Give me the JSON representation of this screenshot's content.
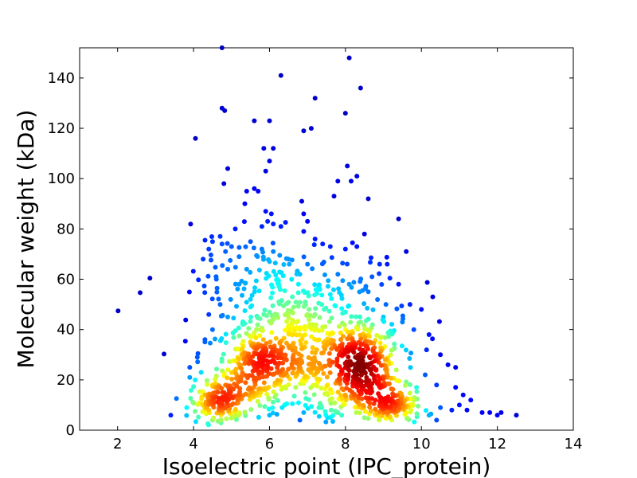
{
  "chart_data": {
    "type": "scatter",
    "title": "",
    "xlabel": "Isoelectric point (IPC_protein)",
    "ylabel": "Molecular weight (kDa)",
    "xlim": [
      1,
      14
    ],
    "ylim": [
      0,
      152
    ],
    "xticks": [
      2,
      4,
      6,
      8,
      10,
      12,
      14
    ],
    "yticks": [
      0,
      20,
      40,
      60,
      80,
      100,
      120,
      140
    ],
    "grid": false,
    "legend": "none",
    "colormap": "jet (point density: blue low → dark red high)",
    "clusters": [
      {
        "center": [
          5.7,
          25
        ],
        "note": "acidic high-density cluster"
      },
      {
        "center": [
          8.4,
          24
        ],
        "note": "basic high-density cluster"
      }
    ],
    "points": [
      [
        4.75,
        152
      ],
      [
        8.1,
        148
      ],
      [
        6.3,
        141
      ],
      [
        8.4,
        136
      ],
      [
        7.2,
        132
      ],
      [
        4.75,
        128
      ],
      [
        4.82,
        127
      ],
      [
        8.0,
        126
      ],
      [
        5.6,
        123
      ],
      [
        6.0,
        123
      ],
      [
        7.1,
        120
      ],
      [
        6.9,
        119
      ],
      [
        4.05,
        116
      ],
      [
        5.85,
        112
      ],
      [
        6.1,
        112
      ],
      [
        6.0,
        107
      ],
      [
        8.05,
        105
      ],
      [
        4.9,
        104
      ],
      [
        5.9,
        103
      ],
      [
        8.3,
        101
      ],
      [
        8.15,
        99
      ],
      [
        7.8,
        99
      ],
      [
        4.8,
        98
      ],
      [
        5.6,
        96
      ],
      [
        5.4,
        95
      ],
      [
        5.7,
        95
      ],
      [
        8.6,
        92
      ],
      [
        6.85,
        91
      ],
      [
        7.7,
        93
      ],
      [
        5.35,
        90
      ],
      [
        5.9,
        87
      ],
      [
        6.05,
        86
      ],
      [
        6.9,
        86
      ],
      [
        5.95,
        83
      ],
      [
        6.1,
        82
      ],
      [
        7.0,
        83
      ],
      [
        9.4,
        84
      ],
      [
        5.8,
        81
      ],
      [
        6.3,
        81
      ],
      [
        5.1,
        80
      ],
      [
        4.7,
        77
      ],
      [
        8.5,
        78
      ],
      [
        6.9,
        79
      ],
      [
        4.5,
        75
      ],
      [
        4.75,
        74
      ],
      [
        5.5,
        75
      ],
      [
        7.2,
        76
      ],
      [
        7.4,
        74
      ],
      [
        8.0,
        72
      ],
      [
        9.6,
        71
      ],
      [
        4.4,
        72
      ],
      [
        5.0,
        73
      ],
      [
        5.8,
        72
      ],
      [
        6.1,
        71
      ],
      [
        7.6,
        73
      ],
      [
        8.3,
        73
      ],
      [
        5.2,
        69
      ],
      [
        6.0,
        67
      ],
      [
        6.5,
        68
      ],
      [
        7.0,
        66
      ],
      [
        8.9,
        66
      ],
      [
        4.9,
        64
      ],
      [
        5.4,
        64
      ],
      [
        6.8,
        62
      ],
      [
        7.8,
        62
      ],
      [
        8.7,
        61
      ],
      [
        9.1,
        66
      ],
      [
        4.6,
        60
      ],
      [
        5.2,
        58
      ],
      [
        6.2,
        60
      ],
      [
        7.3,
        57
      ],
      [
        8.1,
        58
      ],
      [
        9.4,
        58
      ],
      [
        10.3,
        53
      ],
      [
        4.7,
        50
      ],
      [
        5.5,
        52
      ],
      [
        6.6,
        53
      ],
      [
        7.6,
        54
      ],
      [
        8.6,
        55
      ],
      [
        9.7,
        50
      ],
      [
        10.0,
        48
      ],
      [
        4.4,
        46
      ],
      [
        4.9,
        45
      ],
      [
        6.0,
        47
      ],
      [
        7.0,
        46
      ],
      [
        8.0,
        47
      ],
      [
        9.0,
        45
      ],
      [
        9.5,
        43
      ],
      [
        4.5,
        40
      ],
      [
        4.3,
        36
      ],
      [
        5.3,
        42
      ],
      [
        6.8,
        40
      ],
      [
        7.4,
        41
      ],
      [
        8.4,
        43
      ],
      [
        9.8,
        40
      ],
      [
        10.2,
        38
      ],
      [
        4.1,
        29
      ],
      [
        4.2,
        23
      ],
      [
        3.9,
        25
      ],
      [
        3.9,
        21
      ],
      [
        4.5,
        18
      ],
      [
        4.3,
        14
      ],
      [
        4.4,
        8
      ],
      [
        4.5,
        4
      ],
      [
        3.4,
        6
      ],
      [
        10.5,
        30
      ],
      [
        10.7,
        26
      ],
      [
        10.9,
        25
      ],
      [
        10.1,
        22
      ],
      [
        10.4,
        18
      ],
      [
        10.9,
        17
      ],
      [
        11.1,
        14
      ],
      [
        11.3,
        12
      ],
      [
        11.0,
        10
      ],
      [
        10.5,
        9
      ],
      [
        10.8,
        8
      ],
      [
        11.2,
        8
      ],
      [
        11.6,
        7
      ],
      [
        12.0,
        6
      ],
      [
        12.1,
        7
      ],
      [
        12.5,
        6
      ],
      [
        11.8,
        7
      ],
      [
        9.8,
        12
      ],
      [
        9.5,
        9
      ],
      [
        10.2,
        6
      ],
      [
        10.4,
        4
      ],
      [
        9.6,
        7
      ],
      [
        6.4,
        10
      ],
      [
        6.9,
        7
      ],
      [
        7.3,
        9
      ],
      [
        6.0,
        6
      ],
      [
        5.2,
        7
      ],
      [
        5.0,
        10
      ],
      [
        7.9,
        6
      ],
      [
        8.5,
        5
      ],
      [
        9.0,
        7
      ],
      [
        6.8,
        4
      ]
    ]
  }
}
